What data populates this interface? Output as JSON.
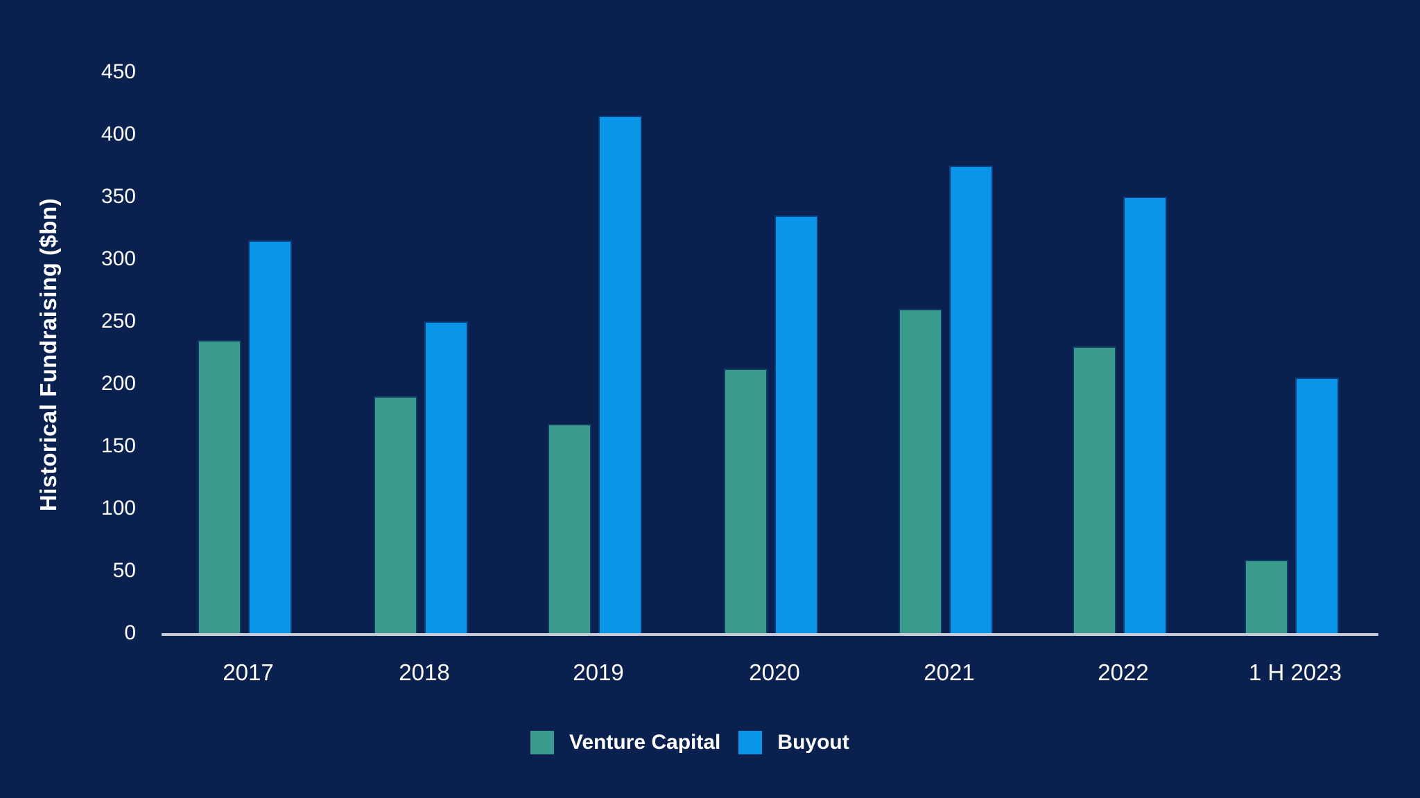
{
  "colors": {
    "background": "#0a2150",
    "axis_line": "#c6cad4",
    "text": "#ffffff"
  },
  "chart_data": {
    "type": "bar",
    "title": "",
    "xlabel": "",
    "ylabel": "Historical Fundraising ($bn)",
    "categories": [
      "2017",
      "2018",
      "2019",
      "2020",
      "2021",
      "2022",
      "1 H 2023"
    ],
    "series": [
      {
        "name": "Venture Capital",
        "color": "#3a9a8c",
        "border_color": "#0d3a66",
        "values": [
          235,
          190,
          168,
          212,
          260,
          230,
          59
        ]
      },
      {
        "name": "Buyout",
        "color": "#0995e8",
        "border_color": "#0a3c7d",
        "values": [
          315,
          250,
          415,
          335,
          375,
          350,
          205
        ]
      }
    ],
    "ylim": [
      0,
      450
    ],
    "yticks": [
      0,
      50,
      100,
      150,
      200,
      250,
      300,
      350,
      400,
      450
    ],
    "grid": false,
    "legend_position": "bottom"
  }
}
